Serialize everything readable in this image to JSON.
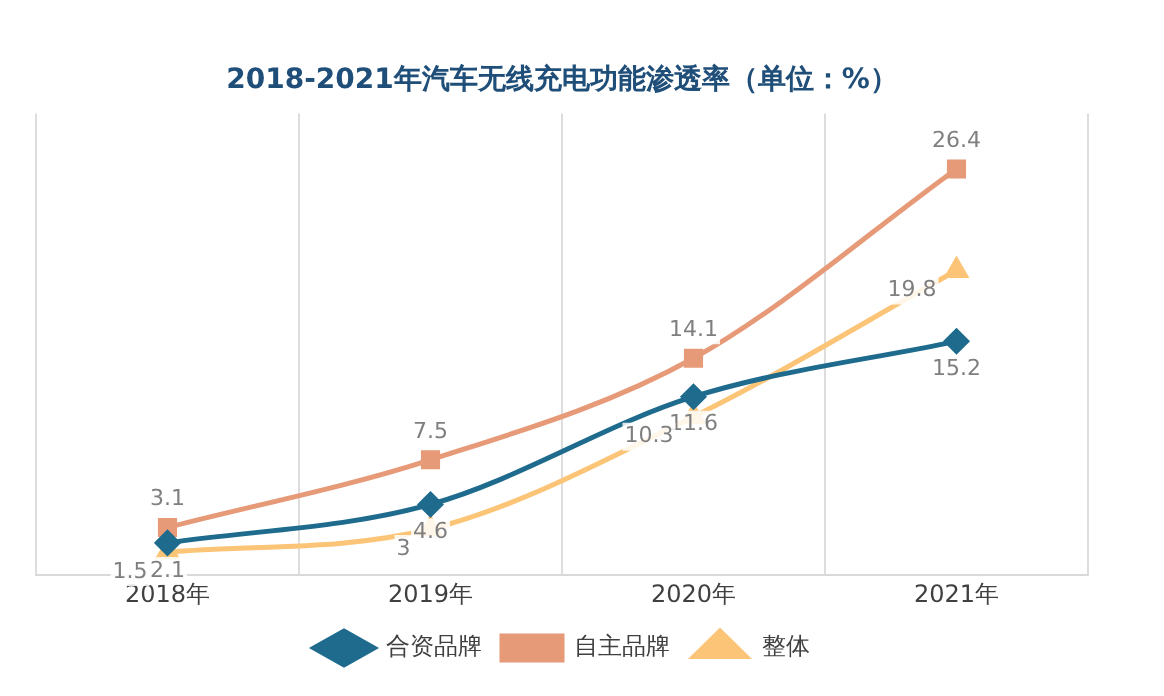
{
  "chart_data": {
    "type": "line",
    "title": "2018-2021年汽车无线充电功能渗透率（单位：%）",
    "categories": [
      "2018年",
      "2019年",
      "2020年",
      "2021年"
    ],
    "series": [
      {
        "name": "合资品牌",
        "color": "#1f6b8e",
        "values": [
          2.1,
          4.6,
          11.6,
          15.2
        ],
        "marker": "diamond"
      },
      {
        "name": "自主品牌",
        "color": "#e69a78",
        "values": [
          3.1,
          7.5,
          14.1,
          26.4
        ],
        "marker": "square"
      },
      {
        "name": "整体",
        "color": "#fcc476",
        "values": [
          1.5,
          3,
          10.3,
          19.8
        ],
        "marker": "triangle"
      }
    ],
    "data_labels": true,
    "grid": "x",
    "legend": "bottom"
  }
}
